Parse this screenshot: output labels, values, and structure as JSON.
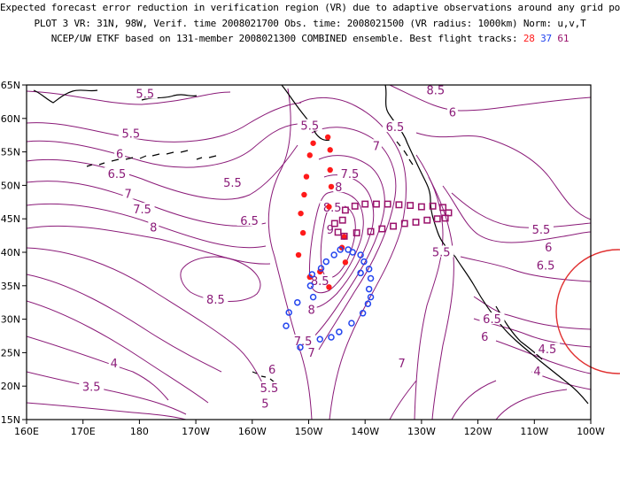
{
  "title": {
    "line1": "Expected forecast error reduction in verification region (VR) due to adaptive observations around any grid point.",
    "line2": "PLOT 3 VR: 31N, 98W, Verif. time 2008021700 Obs. time: 2008021500 (VR radius: 1000km) Norm: u,v,T",
    "line3_prefix": "NCEP/UW ETKF based on 131-member 2008021300 COMBINED ensemble.  Best flight tracks:",
    "tracks": [
      "28",
      "37",
      "61"
    ]
  },
  "colors": {
    "track_28": "#ff1a1a",
    "track_37": "#2244ee",
    "track_61": "#99116b",
    "contour": "#8a1a78",
    "coast": "#000000",
    "vr_circle": "#e03030"
  },
  "map": {
    "x_ticks": [
      "160E",
      "170E",
      "180",
      "170W",
      "160W",
      "150W",
      "140W",
      "130W",
      "120W",
      "110W",
      "100W"
    ],
    "y_ticks": [
      "15N",
      "20N",
      "25N",
      "30N",
      "35N",
      "40N",
      "45N",
      "50N",
      "55N",
      "60N",
      "65N"
    ],
    "lon_range": [
      160,
      260
    ],
    "lat_range": [
      15,
      65
    ],
    "verification_region": {
      "center_lat": 31,
      "center_lon_w": 98,
      "radius_km": 1000
    }
  },
  "contour_labels": [
    {
      "text": "5.5",
      "lon": 181,
      "lat": 63.5
    },
    {
      "text": "5.5",
      "lon": 178.5,
      "lat": 57.5
    },
    {
      "text": "6",
      "lon": 176.5,
      "lat": 54.5
    },
    {
      "text": "6.5",
      "lon": 176,
      "lat": 51.5
    },
    {
      "text": "7",
      "lon": 178,
      "lat": 48.5
    },
    {
      "text": "7.5",
      "lon": 180.5,
      "lat": 46.2
    },
    {
      "text": "8",
      "lon": 182.5,
      "lat": 43.5
    },
    {
      "text": "5.5",
      "lon": 196.5,
      "lat": 50.2
    },
    {
      "text": "6.5",
      "lon": 199.5,
      "lat": 44.5
    },
    {
      "text": "8.5",
      "lon": 193.5,
      "lat": 32.7
    },
    {
      "text": "5.5",
      "lon": 210.2,
      "lat": 58.7
    },
    {
      "text": "6.5",
      "lon": 225.3,
      "lat": 58.5
    },
    {
      "text": "7",
      "lon": 222,
      "lat": 55.7
    },
    {
      "text": "7.5",
      "lon": 217.3,
      "lat": 51.5
    },
    {
      "text": "8",
      "lon": 215.3,
      "lat": 49.5
    },
    {
      "text": "8.5",
      "lon": 214.2,
      "lat": 46.5
    },
    {
      "text": "9",
      "lon": 213.8,
      "lat": 43.2
    },
    {
      "text": "8.5",
      "lon": 212,
      "lat": 35.5
    },
    {
      "text": "8",
      "lon": 210.5,
      "lat": 31.2
    },
    {
      "text": "7.5",
      "lon": 209,
      "lat": 26.5
    },
    {
      "text": "7",
      "lon": 210.5,
      "lat": 24.8
    },
    {
      "text": "8.5",
      "lon": 232.5,
      "lat": 64
    },
    {
      "text": "6",
      "lon": 235.5,
      "lat": 60.7
    },
    {
      "text": "5.5",
      "lon": 233.5,
      "lat": 39.8
    },
    {
      "text": "7",
      "lon": 226.5,
      "lat": 23.2
    },
    {
      "text": "5.5",
      "lon": 251.2,
      "lat": 43.2
    },
    {
      "text": "6",
      "lon": 252.5,
      "lat": 40.5
    },
    {
      "text": "6.5",
      "lon": 252,
      "lat": 37.8
    },
    {
      "text": "6.5",
      "lon": 242.5,
      "lat": 29.8
    },
    {
      "text": "6",
      "lon": 241.2,
      "lat": 27.2
    },
    {
      "text": "4.5",
      "lon": 252.3,
      "lat": 25.3
    },
    {
      "text": "4",
      "lon": 250.5,
      "lat": 22
    },
    {
      "text": "4",
      "lon": 175.5,
      "lat": 23.2
    },
    {
      "text": "3.5",
      "lon": 171.5,
      "lat": 19.7
    },
    {
      "text": "6",
      "lon": 203.5,
      "lat": 22.3
    },
    {
      "text": "5.5",
      "lon": 203,
      "lat": 19.5
    },
    {
      "text": "5",
      "lon": 202.3,
      "lat": 17.2
    }
  ],
  "flight_tracks": {
    "track_28": [
      [
        213.4,
        57.2
      ],
      [
        210.8,
        56.3
      ],
      [
        213.8,
        55.3
      ],
      [
        210.2,
        54.5
      ],
      [
        213.8,
        52.3
      ],
      [
        209.6,
        51.3
      ],
      [
        214.0,
        49.8
      ],
      [
        209.2,
        48.6
      ],
      [
        213.6,
        46.8
      ],
      [
        208.6,
        45.8
      ],
      [
        209.0,
        42.9
      ],
      [
        208.2,
        39.6
      ],
      [
        216.3,
        42.3
      ],
      [
        215.9,
        40.7
      ],
      [
        216.5,
        38.5
      ],
      [
        212.0,
        37.1
      ],
      [
        210.2,
        36.3
      ],
      [
        213.6,
        34.8
      ]
    ],
    "track_37": [
      [
        215.6,
        40.4
      ],
      [
        217.0,
        40.4
      ],
      [
        217.8,
        40.0
      ],
      [
        219.2,
        39.6
      ],
      [
        219.8,
        38.6
      ],
      [
        220.7,
        37.5
      ],
      [
        219.2,
        36.9
      ],
      [
        221.0,
        36.1
      ],
      [
        220.7,
        34.5
      ],
      [
        221.0,
        33.3
      ],
      [
        220.5,
        32.3
      ],
      [
        219.6,
        30.9
      ],
      [
        217.6,
        29.4
      ],
      [
        215.4,
        28.1
      ],
      [
        214.0,
        27.3
      ],
      [
        210.3,
        35.0
      ],
      [
        210.6,
        36.7
      ],
      [
        212.2,
        37.6
      ],
      [
        213.1,
        38.6
      ],
      [
        214.5,
        39.6
      ],
      [
        210.8,
        33.3
      ],
      [
        208.0,
        32.5
      ],
      [
        206.5,
        31.0
      ],
      [
        206.0,
        29.0
      ],
      [
        208.5,
        25.8
      ],
      [
        212.0,
        27.0
      ]
    ],
    "track_61": [
      [
        214.6,
        44.3
      ],
      [
        216.5,
        46.3
      ],
      [
        218.2,
        46.9
      ],
      [
        220.0,
        47.2
      ],
      [
        222.0,
        47.2
      ],
      [
        224.0,
        47.2
      ],
      [
        226.0,
        47.1
      ],
      [
        228.0,
        47.0
      ],
      [
        230.0,
        46.8
      ],
      [
        232.0,
        46.9
      ],
      [
        233.8,
        46.7
      ],
      [
        234.8,
        45.9
      ],
      [
        234.2,
        45.1
      ],
      [
        232.8,
        45.0
      ],
      [
        231.0,
        44.8
      ],
      [
        229.0,
        44.5
      ],
      [
        227.0,
        44.3
      ],
      [
        225.0,
        43.9
      ],
      [
        223.0,
        43.5
      ],
      [
        221.0,
        43.1
      ],
      [
        218.5,
        42.9
      ],
      [
        216.3,
        42.4
      ],
      [
        215.2,
        43.0
      ],
      [
        216.0,
        44.8
      ]
    ]
  }
}
